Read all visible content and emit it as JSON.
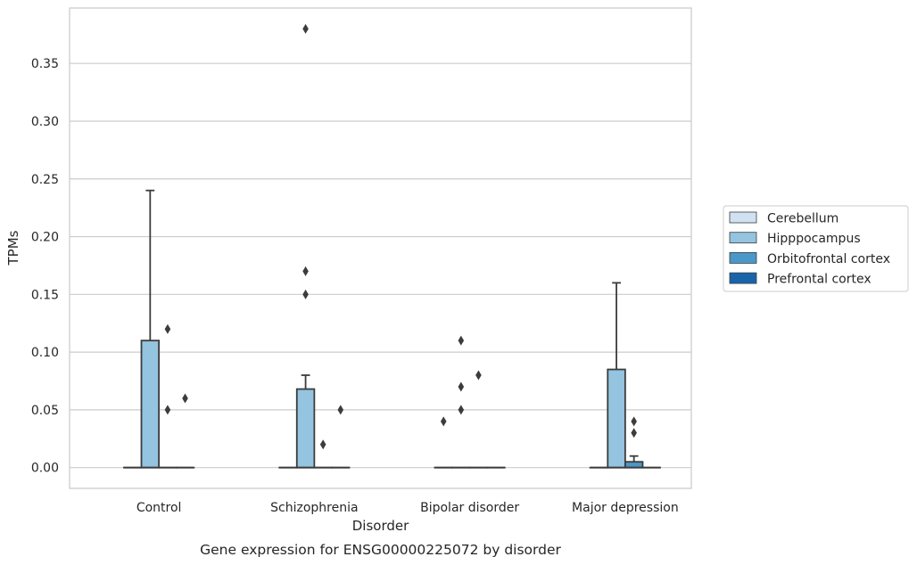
{
  "chart_data": {
    "type": "box",
    "caption": "Gene expression for ENSG00000225072 by disorder",
    "xlabel": "Disorder",
    "ylabel": "TPMs",
    "ylim": [
      -0.018,
      0.398
    ],
    "yticks": [
      "0.00",
      "0.05",
      "0.10",
      "0.15",
      "0.20",
      "0.25",
      "0.30",
      "0.35"
    ],
    "grid": "horizontal",
    "legend_position": "right",
    "categories": [
      "Control",
      "Schizophrenia",
      "Bipolar disorder",
      "Major depression"
    ],
    "series": [
      {
        "name": "Cerebellum",
        "color": "#d0e1f2",
        "boxes": [
          {
            "q1": 0,
            "median": 0,
            "q3": 0,
            "whislo": 0,
            "whishi": 0,
            "fliers": []
          },
          {
            "q1": 0,
            "median": 0,
            "q3": 0,
            "whislo": 0,
            "whishi": 0,
            "fliers": []
          },
          {
            "q1": 0,
            "median": 0,
            "q3": 0,
            "whislo": 0,
            "whishi": 0,
            "fliers": [
              0.04
            ]
          },
          {
            "q1": 0,
            "median": 0,
            "q3": 0,
            "whislo": 0,
            "whishi": 0,
            "fliers": []
          }
        ]
      },
      {
        "name": "Hipppocampus",
        "color": "#94c4df",
        "boxes": [
          {
            "q1": 0,
            "median": 0,
            "q3": 0.11,
            "whislo": 0,
            "whishi": 0.24,
            "fliers": []
          },
          {
            "q1": 0,
            "median": 0,
            "q3": 0.068,
            "whislo": 0,
            "whishi": 0.08,
            "fliers": [
              0.15,
              0.17,
              0.38
            ]
          },
          {
            "q1": 0,
            "median": 0,
            "q3": 0,
            "whislo": 0,
            "whishi": 0,
            "fliers": [
              0.05,
              0.07,
              0.11
            ]
          },
          {
            "q1": 0,
            "median": 0,
            "q3": 0.085,
            "whislo": 0,
            "whishi": 0.16,
            "fliers": []
          }
        ]
      },
      {
        "name": "Orbitofrontal cortex",
        "color": "#4a98c9",
        "boxes": [
          {
            "q1": 0,
            "median": 0,
            "q3": 0,
            "whislo": 0,
            "whishi": 0,
            "fliers": [
              0.05,
              0.12
            ]
          },
          {
            "q1": 0,
            "median": 0,
            "q3": 0,
            "whislo": 0,
            "whishi": 0,
            "fliers": [
              0.02
            ]
          },
          {
            "q1": 0,
            "median": 0,
            "q3": 0,
            "whislo": 0,
            "whishi": 0,
            "fliers": [
              0.08
            ]
          },
          {
            "q1": 0,
            "median": 0,
            "q3": 0.005,
            "whislo": 0,
            "whishi": 0.01,
            "fliers": [
              0.03,
              0.04
            ]
          }
        ]
      },
      {
        "name": "Prefrontal cortex",
        "color": "#1764ab",
        "boxes": [
          {
            "q1": 0,
            "median": 0,
            "q3": 0,
            "whislo": 0,
            "whishi": 0,
            "fliers": [
              0.06
            ]
          },
          {
            "q1": 0,
            "median": 0,
            "q3": 0,
            "whislo": 0,
            "whishi": 0,
            "fliers": [
              0.05
            ]
          },
          {
            "q1": 0,
            "median": 0,
            "q3": 0,
            "whislo": 0,
            "whishi": 0,
            "fliers": []
          },
          {
            "q1": 0,
            "median": 0,
            "q3": 0,
            "whislo": 0,
            "whishi": 0,
            "fliers": []
          }
        ]
      }
    ]
  }
}
